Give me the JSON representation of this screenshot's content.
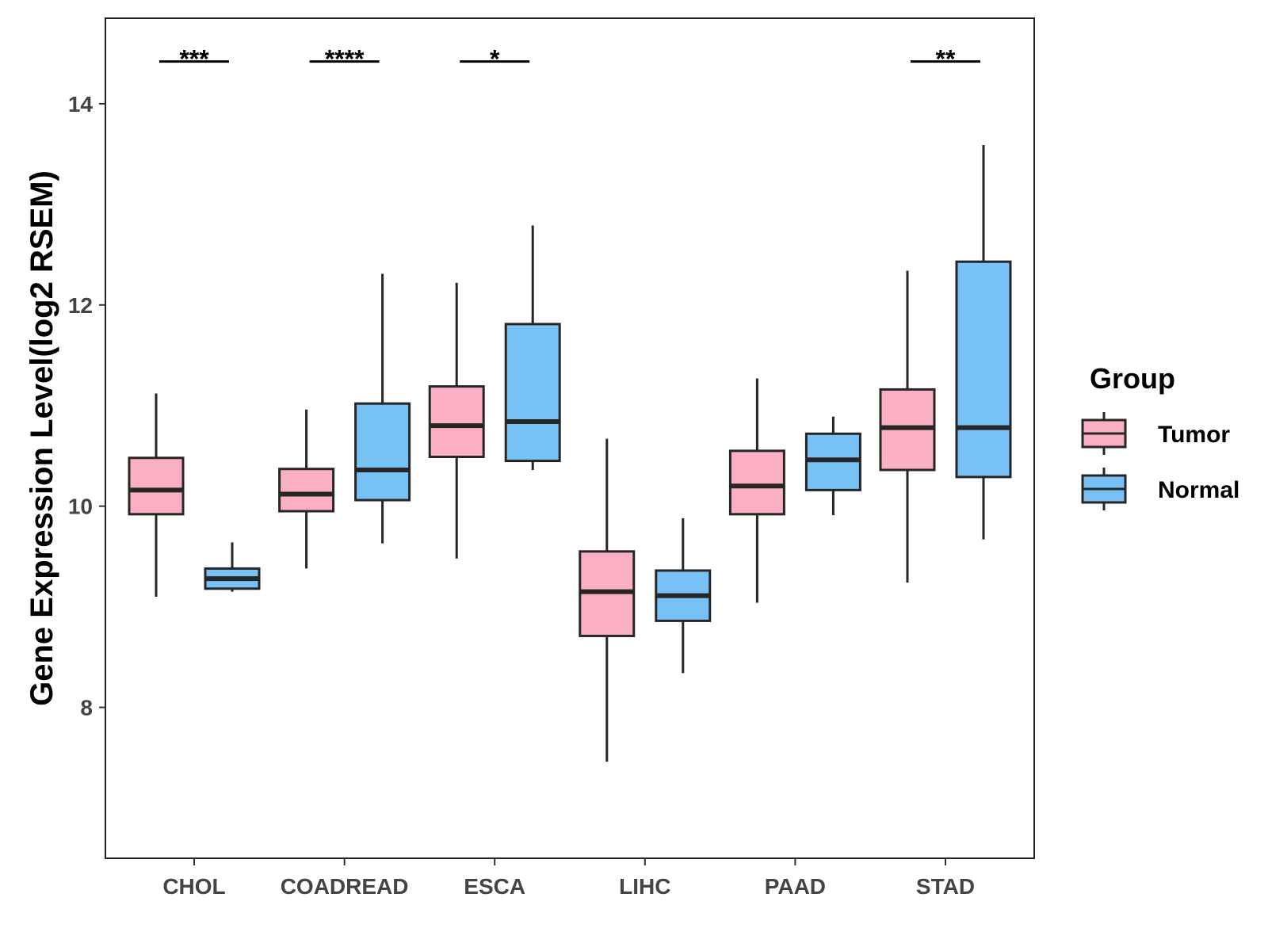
{
  "chart_data": {
    "type": "boxplot",
    "title": "",
    "xlabel": "",
    "ylabel": "Gene Expression Level(log2 RSEM)",
    "ylim": [
      6.5,
      14.85
    ],
    "yticks": [
      8,
      10,
      12,
      14
    ],
    "ytick_labels": [
      "8",
      "10",
      "12",
      "14"
    ],
    "grid": false,
    "categories": [
      "CHOL",
      "COADREAD",
      "ESCA",
      "LIHC",
      "PAAD",
      "STAD"
    ],
    "legend": {
      "title": "Group",
      "position": "right",
      "entries": [
        "Tumor",
        "Normal"
      ]
    },
    "colors": {
      "Tumor": "#FBAFC3",
      "Normal": "#78C1F7",
      "outline": "#262626"
    },
    "series": [
      {
        "name": "Tumor",
        "boxes": [
          {
            "category": "CHOL",
            "min": 9.1,
            "q1": 9.92,
            "median": 10.16,
            "q3": 10.48,
            "max": 11.12
          },
          {
            "category": "COADREAD",
            "min": 9.38,
            "q1": 9.95,
            "median": 10.12,
            "q3": 10.37,
            "max": 10.96
          },
          {
            "category": "ESCA",
            "min": 9.48,
            "q1": 10.49,
            "median": 10.8,
            "q3": 11.19,
            "max": 12.22
          },
          {
            "category": "LIHC",
            "min": 7.46,
            "q1": 8.71,
            "median": 9.15,
            "q3": 9.55,
            "max": 10.67
          },
          {
            "category": "PAAD",
            "min": 9.04,
            "q1": 9.92,
            "median": 10.2,
            "q3": 10.55,
            "max": 11.27
          },
          {
            "category": "STAD",
            "min": 9.24,
            "q1": 10.36,
            "median": 10.78,
            "q3": 11.16,
            "max": 12.34
          }
        ]
      },
      {
        "name": "Normal",
        "boxes": [
          {
            "category": "CHOL",
            "min": 9.15,
            "q1": 9.18,
            "median": 9.28,
            "q3": 9.38,
            "max": 9.64
          },
          {
            "category": "COADREAD",
            "min": 9.63,
            "q1": 10.06,
            "median": 10.36,
            "q3": 11.02,
            "max": 12.31
          },
          {
            "category": "ESCA",
            "min": 10.36,
            "q1": 10.45,
            "median": 10.84,
            "q3": 11.81,
            "max": 12.79
          },
          {
            "category": "LIHC",
            "min": 8.34,
            "q1": 8.86,
            "median": 9.11,
            "q3": 9.36,
            "max": 9.88
          },
          {
            "category": "PAAD",
            "min": 9.91,
            "q1": 10.16,
            "median": 10.46,
            "q3": 10.72,
            "max": 10.89
          },
          {
            "category": "STAD",
            "min": 9.67,
            "q1": 10.29,
            "median": 10.78,
            "q3": 12.43,
            "max": 13.59
          }
        ]
      }
    ],
    "significance": [
      {
        "category": "CHOL",
        "label": "***",
        "y": 14.42
      },
      {
        "category": "COADREAD",
        "label": "****",
        "y": 14.42
      },
      {
        "category": "ESCA",
        "label": "*",
        "y": 14.42
      },
      {
        "category": "STAD",
        "label": "**",
        "y": 14.42
      }
    ]
  }
}
